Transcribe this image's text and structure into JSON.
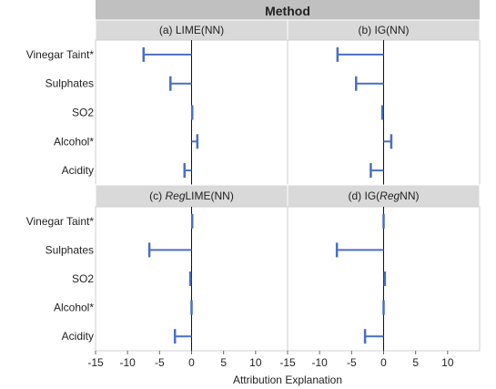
{
  "header": "Method",
  "xlabel": "Attribution Explanation",
  "categories": [
    "Vinegar Taint*",
    "Sulphates",
    "SO2",
    "Alcohol*",
    "Acidity"
  ],
  "tick_labels": [
    "-15",
    "-10",
    "-5",
    "0",
    "5",
    "10"
  ],
  "colors": {
    "bar": "#4a6fc0",
    "zero_line": "#111111",
    "strip": "#d9d9d9",
    "header": "#c0c0c0"
  },
  "chart_data": {
    "type": "bar",
    "orientation": "horizontal",
    "xlim": [
      -15,
      15
    ],
    "x_ticks": [
      -15,
      -10,
      -5,
      0,
      5,
      10
    ],
    "categories": [
      "Vinegar Taint*",
      "Sulphates",
      "SO2",
      "Alcohol*",
      "Acidity"
    ],
    "panels": [
      {
        "title": "(a) LIME(NN)",
        "values": [
          -7.5,
          -3.3,
          0.1,
          0.9,
          -1.1
        ]
      },
      {
        "title": "(b) IG(NN)",
        "values": [
          -7.2,
          -4.3,
          -0.2,
          1.2,
          -2.0
        ]
      },
      {
        "title_parts": [
          "(c) ",
          "Reg",
          "LIME(NN)"
        ],
        "values": [
          0.1,
          -6.6,
          -0.2,
          0.0,
          -2.6
        ]
      },
      {
        "title_parts": [
          "(d) IG(",
          "Reg",
          "NN)"
        ],
        "values": [
          0.0,
          -7.3,
          0.2,
          0.0,
          -2.9
        ]
      }
    ]
  }
}
